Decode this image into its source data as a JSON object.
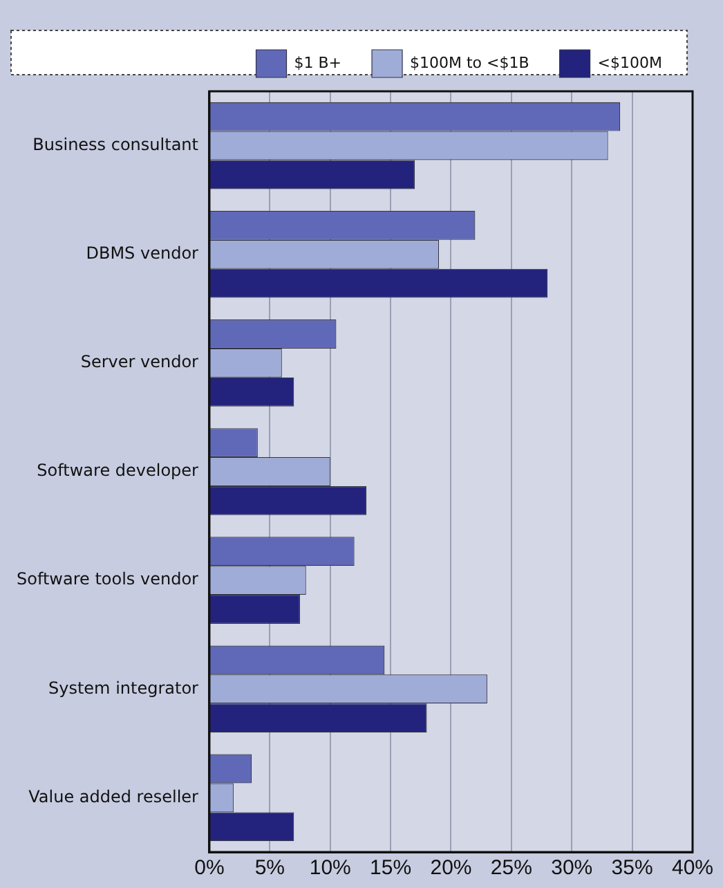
{
  "chart_data": {
    "type": "bar",
    "orientation": "horizontal",
    "categories": [
      "Business consultant",
      "DBMS vendor",
      "Server vendor",
      "Software developer",
      "Software tools vendor",
      "System integrator",
      "Value added reseller"
    ],
    "series": [
      {
        "name": "$1 B+",
        "color": "#6068b8",
        "values": [
          34,
          22,
          10.5,
          4,
          12,
          14.5,
          3.5
        ]
      },
      {
        "name": "$100M to <$1B",
        "color": "#a0acd8",
        "values": [
          33,
          19,
          6,
          10,
          8,
          23,
          2
        ]
      },
      {
        "name": "<$100M",
        "color": "#23237e",
        "values": [
          17,
          28,
          7,
          13,
          7.5,
          18,
          7
        ]
      }
    ],
    "xlim": [
      0,
      40
    ],
    "xticks": [
      {
        "value": 0,
        "label": "0%"
      },
      {
        "value": 5,
        "label": "5%"
      },
      {
        "value": 10,
        "label": "10%"
      },
      {
        "value": 15,
        "label": "15%"
      },
      {
        "value": 20,
        "label": "20%"
      },
      {
        "value": 25,
        "label": "25%"
      },
      {
        "value": 30,
        "label": "30%"
      },
      {
        "value": 35,
        "label": "35%"
      },
      {
        "value": 40,
        "label": "40%"
      }
    ],
    "grid": "x",
    "legend": "top right"
  }
}
